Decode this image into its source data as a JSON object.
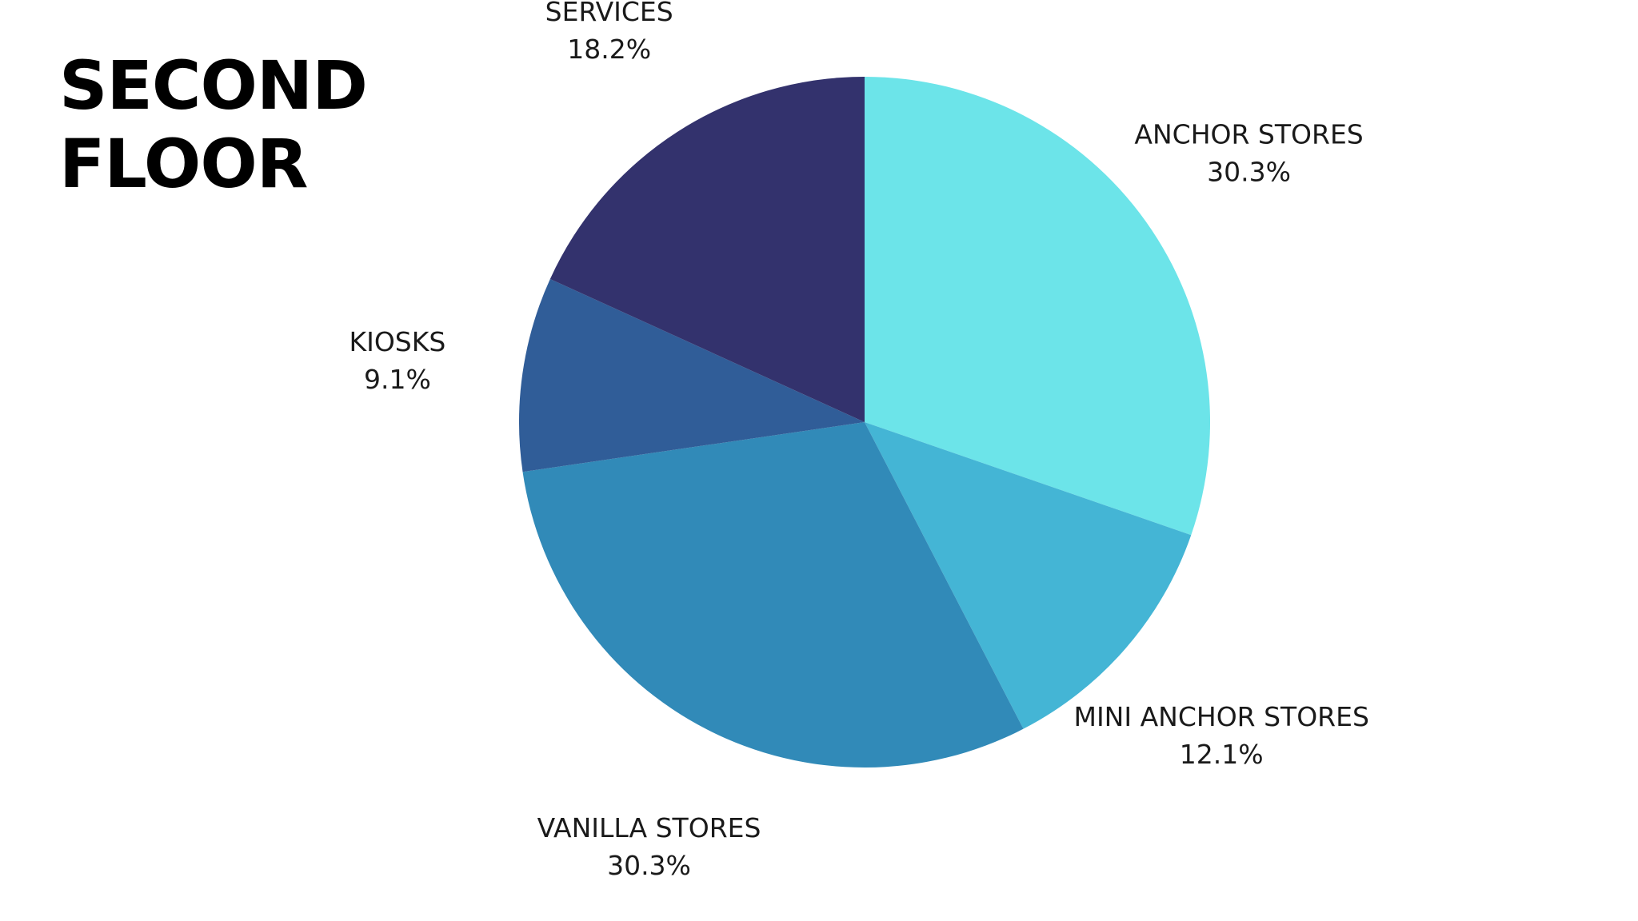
{
  "title_lines": [
    "SECOND",
    "FLOOR"
  ],
  "chart_data": {
    "type": "pie",
    "title": "SECOND FLOOR",
    "start_angle_deg": 0,
    "direction": "clockwise",
    "slices": [
      {
        "label": "ANCHOR STORES",
        "value": 30.3,
        "value_label": "30.3%",
        "color": "#6ce4e9"
      },
      {
        "label": "MINI ANCHOR STORES",
        "value": 12.1,
        "value_label": "12.1%",
        "color": "#44b5d5"
      },
      {
        "label": "VANILLA STORES",
        "value": 30.3,
        "value_label": "30.3%",
        "color": "#318ab8"
      },
      {
        "label": "KIOSKS",
        "value": 9.1,
        "value_label": "9.1%",
        "color": "#305d98"
      },
      {
        "label": "SERVICES",
        "value": 18.2,
        "value_label": "18.2%",
        "color": "#33326d"
      }
    ]
  }
}
